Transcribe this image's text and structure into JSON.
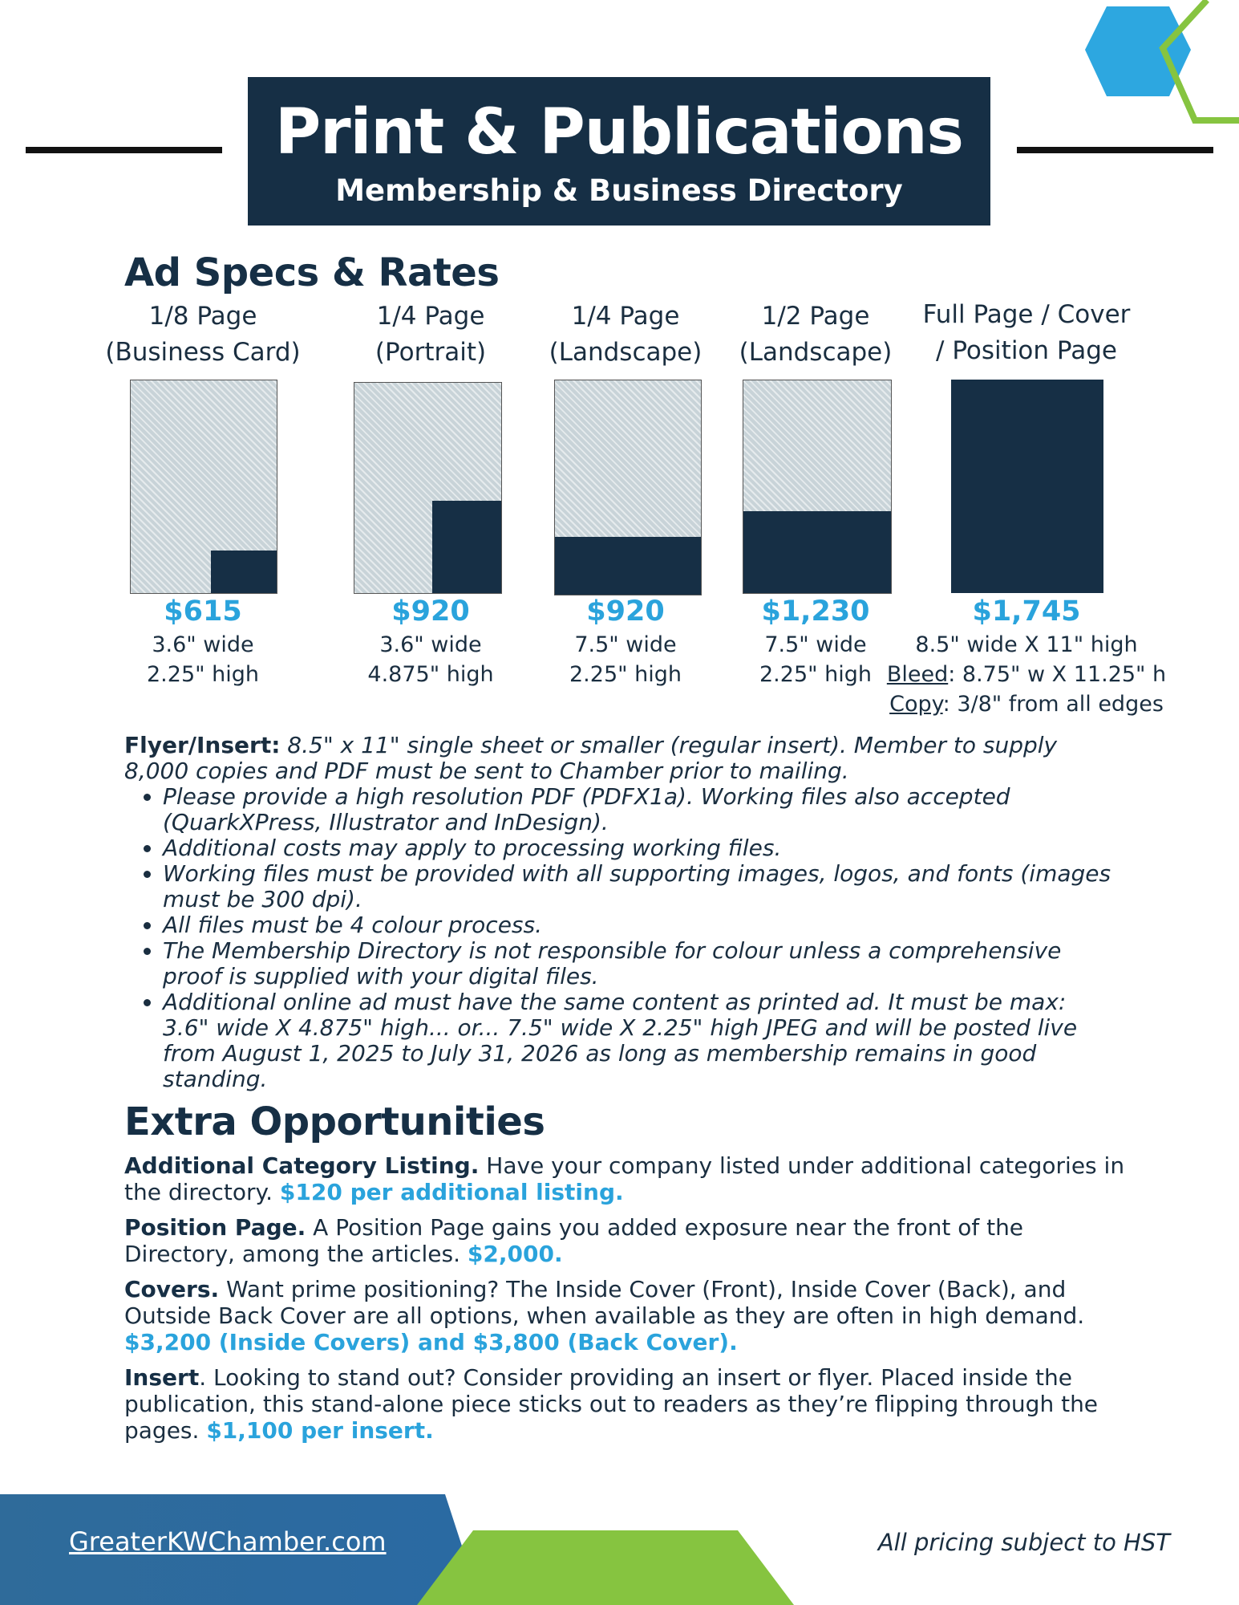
{
  "header": {
    "title": "Print & Publications",
    "subtitle": "Membership & Business Directory"
  },
  "colors": {
    "navy": "#162f45",
    "accent_blue": "#2aa3dc",
    "accent_green": "#86c440",
    "hex_blue": "#2da7e0"
  },
  "ad_section": {
    "heading": "Ad Specs & Rates",
    "ads": [
      {
        "label1": "1/8 Page",
        "label2": "(Business Card)",
        "price": "$615",
        "dim1": "3.6\" wide",
        "dim2": "2.25\" high"
      },
      {
        "label1": "1/4 Page",
        "label2": "(Portrait)",
        "price": "$920",
        "dim1": "3.6\" wide",
        "dim2": "4.875\" high"
      },
      {
        "label1": "1/4 Page",
        "label2": "(Landscape)",
        "price": "$920",
        "dim1": "7.5\" wide",
        "dim2": "2.25\" high"
      },
      {
        "label1": "1/2 Page",
        "label2": "(Landscape)",
        "price": "$1,230",
        "dim1": "7.5\" wide",
        "dim2": "2.25\" high"
      },
      {
        "label1": "Full Page / Cover",
        "label2": "/ Position Page",
        "price": "$1,745",
        "dim1": "8.5\" wide X 11\" high",
        "bleed_label": "Bleed",
        "bleed_value": ": 8.75\" w X 11.25\" h",
        "copy_label": "Copy",
        "copy_value": ": 3/8\" from all edges"
      }
    ]
  },
  "flyer": {
    "label": "Flyer/Insert:",
    "text": " 8.5\" x 11\" single sheet or smaller (regular insert). Member to supply 8,000 copies and PDF must be sent to Chamber prior to mailing.",
    "bullets": [
      "Please provide a high resolution PDF (PDFX1a). Working files also accepted (QuarkXPress, Illustrator and InDesign).",
      "Additional costs may apply to processing working files.",
      "Working files must be provided with all supporting images, logos, and fonts (images must be 300 dpi).",
      "All files must be 4 colour process.",
      "The Membership Directory is not responsible for colour unless a comprehensive proof is supplied with your digital files.",
      "Additional online ad must have the same content as printed ad. It must be max: 3.6\" wide X 4.875\" high... or... 7.5\" wide X 2.25\" high JPEG and will be posted live from August 1, 2025 to July 31, 2026 as long as membership remains in good standing."
    ]
  },
  "extra": {
    "heading": "Extra Opportunities",
    "items": [
      {
        "title": "Additional Category Listing.",
        "text": " Have your company listed under additional categories in the directory. ",
        "price": "$120 per additional listing."
      },
      {
        "title": "Position Page.",
        "text": " A Position Page gains you added exposure near the front of the Directory, among the articles. ",
        "price": "$2,000."
      },
      {
        "title": "Covers.",
        "text": " Want prime positioning? The Inside Cover (Front), Inside Cover (Back), and Outside Back Cover are all options, when available as they are often in high demand. ",
        "price": "$3,200 (Inside Covers) and $3,800 (Back Cover)."
      },
      {
        "title": "Insert",
        "text": ". Looking to stand out? Consider providing an insert or flyer. Placed inside the publication, this stand-alone piece sticks out to readers as they’re flipping through the pages. ",
        "price": "$1,100 per insert."
      }
    ]
  },
  "footer": {
    "website": "GreaterKWChamber.com",
    "note": "All pricing subject to HST"
  }
}
